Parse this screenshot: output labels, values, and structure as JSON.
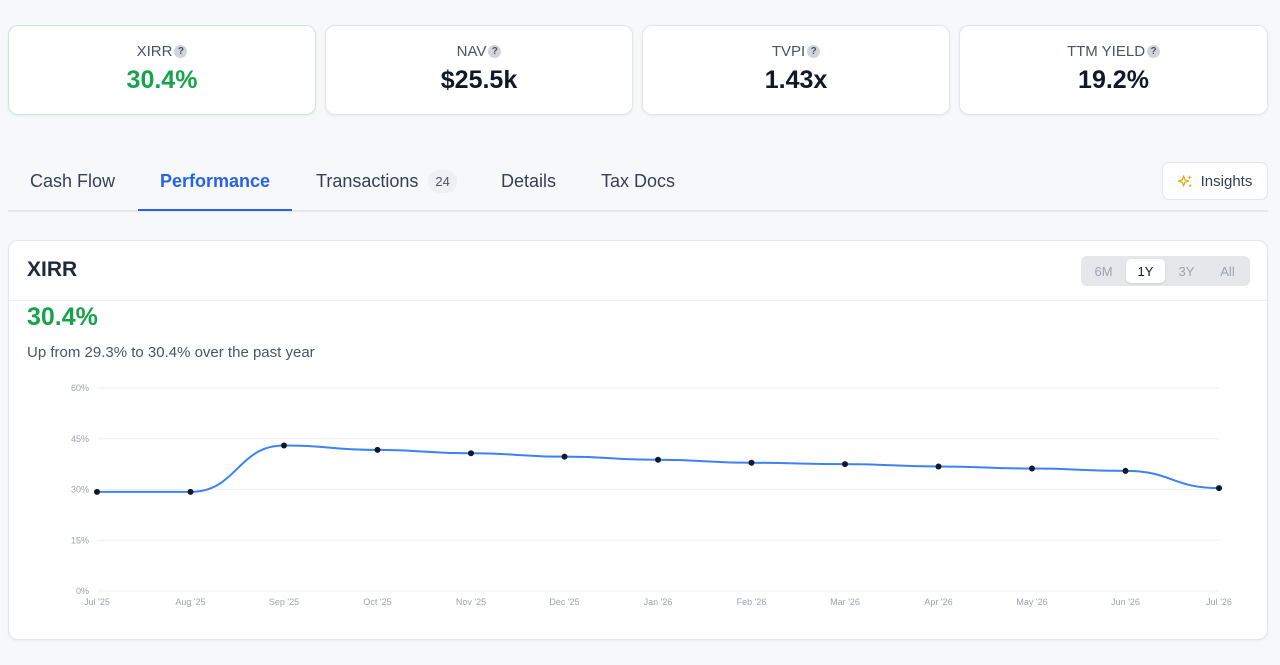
{
  "stats": [
    {
      "label": "XIRR",
      "value": "30.4%"
    },
    {
      "label": "NAV",
      "value": "$25.5k"
    },
    {
      "label": "TVPI",
      "value": "1.43x"
    },
    {
      "label": "TTM YIELD",
      "value": "19.2%"
    }
  ],
  "help_glyph": "?",
  "tabs": [
    {
      "label": "Cash Flow"
    },
    {
      "label": "Performance"
    },
    {
      "label": "Transactions",
      "badge": "24"
    },
    {
      "label": "Details"
    },
    {
      "label": "Tax Docs"
    }
  ],
  "active_tab": "Performance",
  "insights": {
    "label": "Insights",
    "icon": "sparkle-icon"
  },
  "panel": {
    "title": "XIRR",
    "value": "30.4%",
    "subtitle": "Up from 29.3% to 30.4% over the past year",
    "ranges": [
      "6M",
      "1Y",
      "3Y",
      "All"
    ],
    "active_range": "1Y"
  },
  "colors": {
    "positive": "#16a34a",
    "accent": "#2563eb",
    "line": "#3b82f6"
  },
  "chart_data": {
    "type": "line",
    "x": [
      "Jul '25",
      "Aug '25",
      "Sep '25",
      "Oct '25",
      "Nov '25",
      "Dec '25",
      "Jan '26",
      "Feb '26",
      "Mar '26",
      "Apr '26",
      "May '26",
      "Jun '26",
      "Jul '26"
    ],
    "series": [
      {
        "values": [
          29.3,
          29.3,
          43.0,
          41.7,
          40.7,
          39.7,
          38.8,
          37.9,
          37.5,
          36.8,
          36.2,
          35.5,
          30.4
        ]
      }
    ],
    "y_ticks": [
      "0%",
      "15%",
      "30%",
      "45%",
      "60%"
    ],
    "ylim": [
      0,
      60
    ],
    "grid": true
  }
}
